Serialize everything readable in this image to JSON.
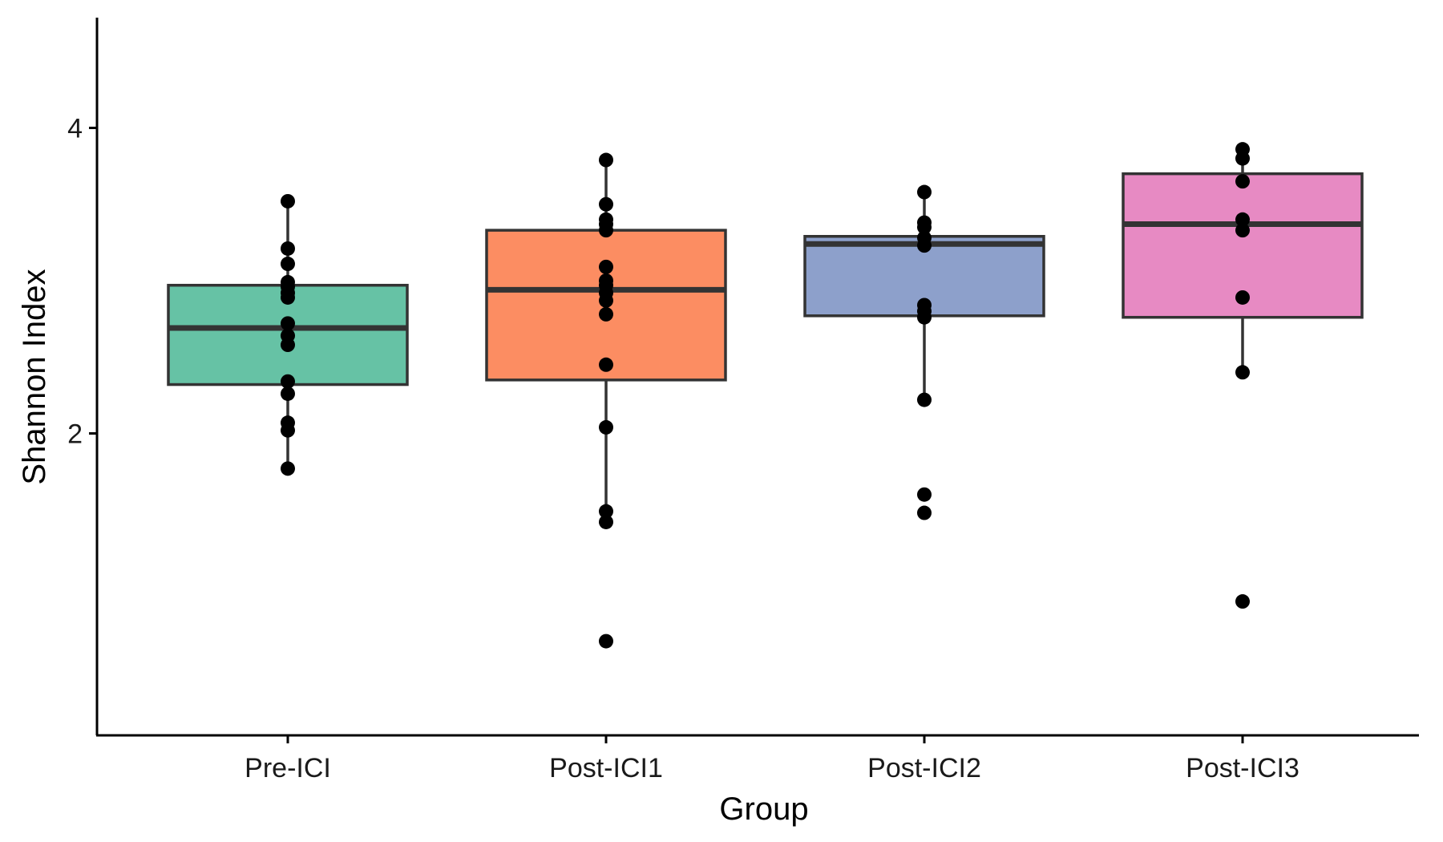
{
  "chart_data": {
    "type": "boxplot",
    "xlabel": "Group",
    "ylabel": "Shannon Index",
    "ylim": [
      0.55,
      4.7
    ],
    "y_ticks": [
      2,
      4
    ],
    "y_tick_labels": [
      "2",
      "4"
    ],
    "categories": [
      "Pre-ICI",
      "Post-ICI1",
      "Post-ICI2",
      "Post-ICI3"
    ],
    "grid": false,
    "legend": "none",
    "boxes": [
      {
        "category": "Pre-ICI",
        "color": "#66c2a5",
        "q1": 2.32,
        "median": 2.69,
        "q3": 2.97,
        "whisker_low": 1.77,
        "whisker_high": 3.52
      },
      {
        "category": "Post-ICI1",
        "color": "#fc8d62",
        "q1": 2.35,
        "median": 2.94,
        "q3": 3.33,
        "whisker_low": 1.42,
        "whisker_high": 3.79
      },
      {
        "category": "Post-ICI2",
        "color": "#8da0cb",
        "q1": 2.77,
        "median": 3.24,
        "q3": 3.29,
        "whisker_low": 2.22,
        "whisker_high": 3.58
      },
      {
        "category": "Post-ICI3",
        "color": "#e78ac3",
        "q1": 2.76,
        "median": 3.37,
        "q3": 3.7,
        "whisker_low": 2.4,
        "whisker_high": 3.86
      }
    ],
    "points": [
      {
        "category": "Pre-ICI",
        "values": [
          3.52,
          3.21,
          3.11,
          2.99,
          2.96,
          2.92,
          2.89,
          2.72,
          2.64,
          2.58,
          2.34,
          2.26,
          2.07,
          2.02,
          1.77
        ]
      },
      {
        "category": "Post-ICI1",
        "values": [
          3.79,
          3.5,
          3.4,
          3.37,
          3.33,
          3.09,
          3.0,
          2.97,
          2.92,
          2.87,
          2.78,
          2.45,
          2.04,
          1.49,
          1.42,
          0.64
        ]
      },
      {
        "category": "Post-ICI2",
        "values": [
          3.58,
          3.38,
          3.35,
          3.28,
          3.23,
          2.84,
          2.8,
          2.76,
          2.22,
          1.6,
          1.48
        ]
      },
      {
        "category": "Post-ICI3",
        "values": [
          3.86,
          3.8,
          3.65,
          3.4,
          3.33,
          2.89,
          2.4,
          0.9
        ]
      }
    ]
  }
}
